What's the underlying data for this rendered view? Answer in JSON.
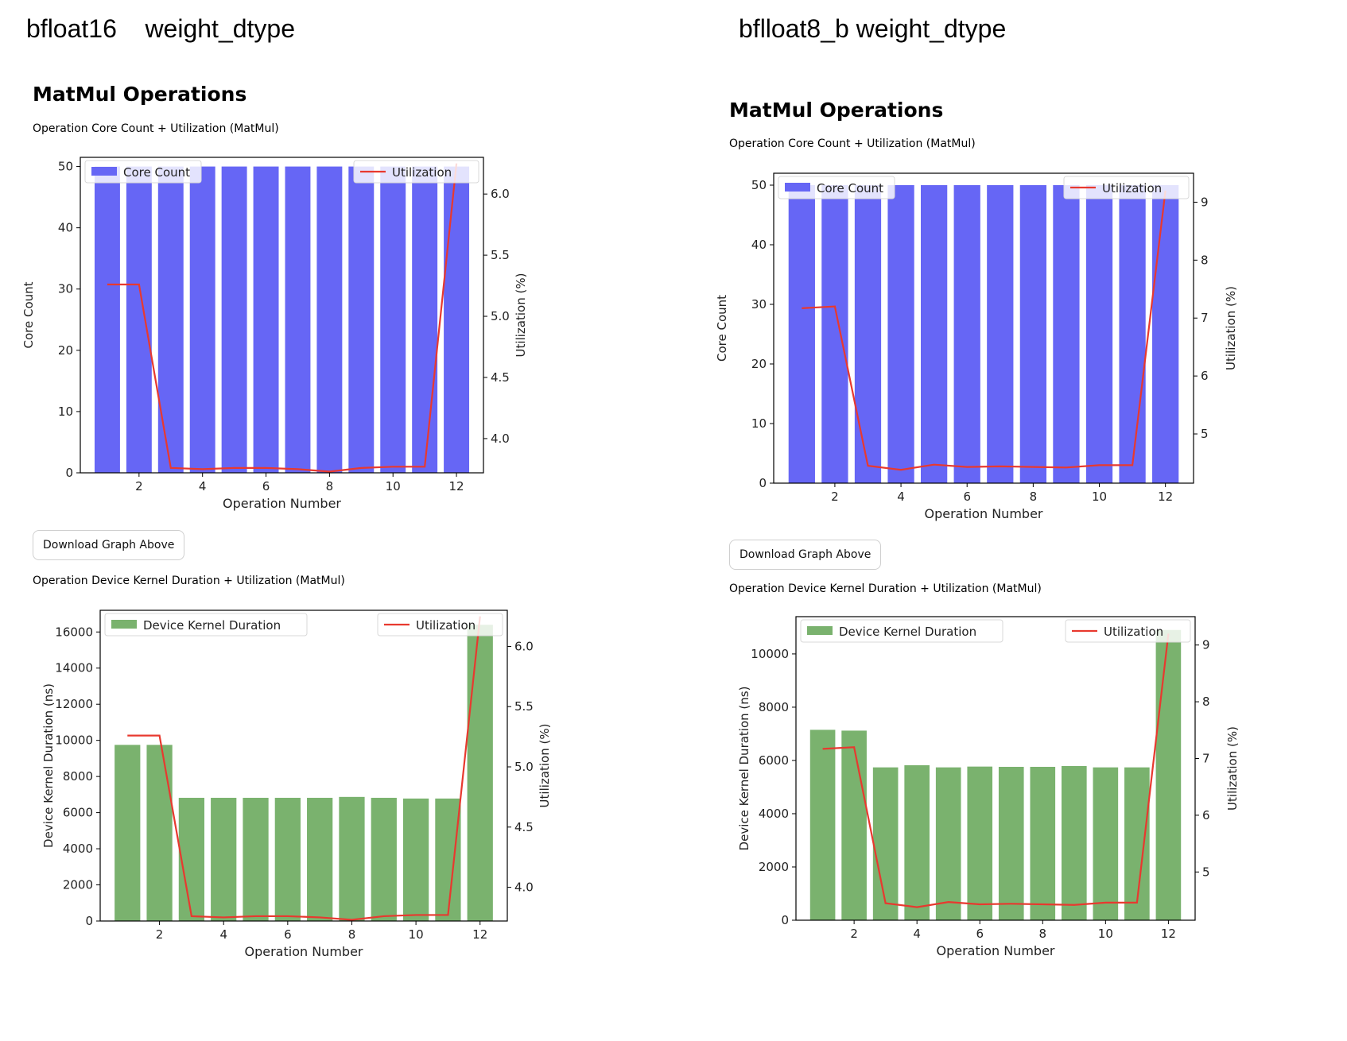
{
  "panels": [
    {
      "dtype_label": "bfloat16    weight_dtype",
      "section_title": "MatMul Operations",
      "core_chart_caption": "Operation Core Count + Utilization (MatMul)",
      "download_button_label": "Download Graph Above",
      "kernel_chart_caption": "Operation Device Kernel Duration + Utilization (MatMul)"
    },
    {
      "dtype_label": "bflloat8_b weight_dtype",
      "section_title": "MatMul Operations",
      "core_chart_caption": "Operation Core Count + Utilization (MatMul)",
      "download_button_label": "Download Graph Above",
      "kernel_chart_caption": "Operation Device Kernel Duration + Utilization (MatMul)"
    }
  ],
  "chart_data": [
    {
      "id": "left-core",
      "type": "bar+line",
      "bar_color": "#6666f5",
      "line_color": "#e8392f",
      "x": [
        1,
        2,
        3,
        4,
        5,
        6,
        7,
        8,
        9,
        10,
        11,
        12
      ],
      "xticks": [
        2,
        4,
        6,
        8,
        10,
        12
      ],
      "xlim": [
        0.15,
        12.85
      ],
      "xlabel": "Operation Number",
      "ylabel": "Core Count",
      "y2label": "Utilization (%)",
      "ylim": [
        0,
        51.5
      ],
      "yticks": [
        0,
        10,
        20,
        30,
        40,
        50
      ],
      "y2lim": [
        3.72,
        6.3
      ],
      "y2ticks": [
        4.0,
        4.5,
        5.0,
        5.5,
        6.0
      ],
      "series": [
        {
          "name": "Core Count",
          "kind": "bar",
          "values": [
            50,
            50,
            50,
            50,
            50,
            50,
            50,
            50,
            50,
            50,
            50,
            50
          ]
        },
        {
          "name": "Utilization",
          "kind": "line",
          "values": [
            5.26,
            5.26,
            3.76,
            3.75,
            3.76,
            3.76,
            3.75,
            3.73,
            3.76,
            3.77,
            3.77,
            6.25
          ]
        }
      ]
    },
    {
      "id": "left-kernel",
      "type": "bar+line",
      "bar_color": "#7ab26e",
      "line_color": "#e8392f",
      "x": [
        1,
        2,
        3,
        4,
        5,
        6,
        7,
        8,
        9,
        10,
        11,
        12
      ],
      "xticks": [
        2,
        4,
        6,
        8,
        10,
        12
      ],
      "xlim": [
        0.15,
        12.85
      ],
      "xlabel": "Operation Number",
      "ylabel": "Device Kernel Duration (ns)",
      "y2label": "Utilization (%)",
      "ylim": [
        0,
        17200
      ],
      "yticks": [
        0,
        2000,
        4000,
        6000,
        8000,
        10000,
        12000,
        14000,
        16000
      ],
      "y2lim": [
        3.72,
        6.3
      ],
      "y2ticks": [
        4.0,
        4.5,
        5.0,
        5.5,
        6.0
      ],
      "series": [
        {
          "name": "Device Kernel Duration",
          "kind": "bar",
          "values": [
            9750,
            9750,
            6820,
            6820,
            6820,
            6820,
            6820,
            6870,
            6820,
            6780,
            6780,
            16400
          ]
        },
        {
          "name": "Utilization",
          "kind": "line",
          "values": [
            5.26,
            5.26,
            3.76,
            3.75,
            3.76,
            3.76,
            3.75,
            3.73,
            3.76,
            3.77,
            3.77,
            6.25
          ]
        }
      ]
    },
    {
      "id": "right-core",
      "type": "bar+line",
      "bar_color": "#6666f5",
      "line_color": "#e8392f",
      "x": [
        1,
        2,
        3,
        4,
        5,
        6,
        7,
        8,
        9,
        10,
        11,
        12
      ],
      "xticks": [
        2,
        4,
        6,
        8,
        10,
        12
      ],
      "xlim": [
        0.15,
        12.85
      ],
      "xlabel": "Operation Number",
      "ylabel": "Core Count",
      "y2label": "Utilization (%)",
      "ylim": [
        0,
        52
      ],
      "yticks": [
        0,
        10,
        20,
        30,
        40,
        50
      ],
      "y2lim": [
        4.15,
        9.5
      ],
      "y2ticks": [
        5,
        6,
        7,
        8,
        9
      ],
      "series": [
        {
          "name": "Core Count",
          "kind": "bar",
          "values": [
            50,
            50,
            50,
            50,
            50,
            50,
            50,
            50,
            50,
            50,
            50,
            50
          ]
        },
        {
          "name": "Utilization",
          "kind": "line",
          "values": [
            7.17,
            7.2,
            4.45,
            4.38,
            4.47,
            4.43,
            4.44,
            4.43,
            4.42,
            4.46,
            4.46,
            9.2
          ]
        }
      ]
    },
    {
      "id": "right-kernel",
      "type": "bar+line",
      "bar_color": "#7ab26e",
      "line_color": "#e8392f",
      "x": [
        1,
        2,
        3,
        4,
        5,
        6,
        7,
        8,
        9,
        10,
        11,
        12
      ],
      "xticks": [
        2,
        4,
        6,
        8,
        10,
        12
      ],
      "xlim": [
        0.15,
        12.85
      ],
      "xlabel": "Operation Number",
      "ylabel": "Device Kernel Duration (ns)",
      "y2label": "Utilization (%)",
      "ylim": [
        0,
        11400
      ],
      "yticks": [
        0,
        2000,
        4000,
        6000,
        8000,
        10000
      ],
      "y2lim": [
        4.15,
        9.5
      ],
      "y2ticks": [
        5,
        6,
        7,
        8,
        9
      ],
      "series": [
        {
          "name": "Device Kernel Duration",
          "kind": "bar",
          "values": [
            7150,
            7120,
            5740,
            5820,
            5740,
            5770,
            5760,
            5760,
            5790,
            5740,
            5740,
            10900
          ]
        },
        {
          "name": "Utilization",
          "kind": "line",
          "values": [
            7.17,
            7.2,
            4.45,
            4.38,
            4.47,
            4.43,
            4.44,
            4.43,
            4.42,
            4.46,
            4.46,
            9.2
          ]
        }
      ]
    }
  ]
}
